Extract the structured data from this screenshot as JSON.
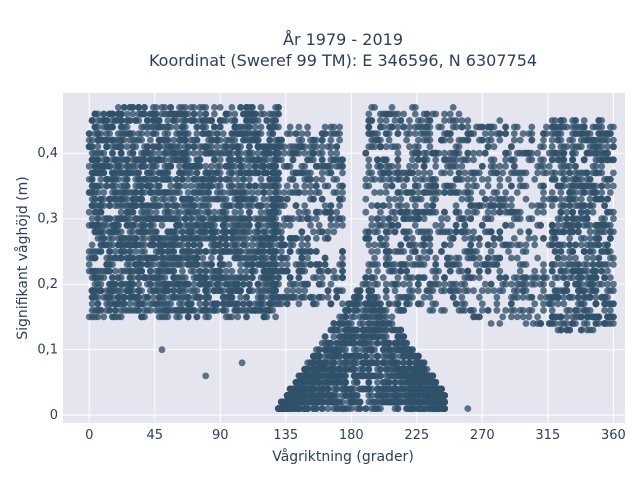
{
  "chart_data": {
    "type": "scatter",
    "title_line1": "År 1979 - 2019",
    "title_line2": "Koordinat (Sweref 99 TM): E 346596, N 6307754",
    "xlabel": "Vågriktning (grader)",
    "ylabel": "Signifikant våghöjd (m)",
    "xlim": [
      -18,
      368
    ],
    "ylim": [
      -0.012,
      0.492
    ],
    "xticks": [
      0,
      45,
      90,
      135,
      180,
      225,
      270,
      315,
      360
    ],
    "xtick_labels": [
      "0",
      "45",
      "90",
      "135",
      "180",
      "225",
      "270",
      "315",
      "360"
    ],
    "yticks": [
      0,
      0.1,
      0.2,
      0.3,
      0.4
    ],
    "ytick_labels": [
      "0",
      "0,1",
      "0,2",
      "0,3",
      "0,4"
    ],
    "grid": true,
    "marker_color": "#2f5169",
    "background_color": "#e5e5f0",
    "density_regions": [
      {
        "direction_range": [
          0,
          130
        ],
        "height_range": [
          0.15,
          0.47
        ],
        "approx_points": 2600
      },
      {
        "direction_range": [
          125,
          175
        ],
        "height_range": [
          0.17,
          0.44
        ],
        "approx_points": 450
      },
      {
        "direction_range": [
          190,
          262
        ],
        "height_range": [
          0.16,
          0.47
        ],
        "approx_points": 700
      },
      {
        "direction_range": [
          262,
          320
        ],
        "height_range": [
          0.14,
          0.45
        ],
        "approx_points": 400
      },
      {
        "direction_range": [
          318,
          360
        ],
        "height_range": [
          0.13,
          0.45
        ],
        "approx_points": 650
      },
      {
        "direction_range": [
          130,
          245
        ],
        "height_range": [
          0.0,
          0.2
        ],
        "shape": "triangle",
        "peak_direction": 190,
        "approx_points": 1700
      }
    ],
    "sparse_points": [
      {
        "x": 80,
        "y": 0.06
      },
      {
        "x": 105,
        "y": 0.08
      },
      {
        "x": 260,
        "y": 0.01
      },
      {
        "x": 305,
        "y": 0.14
      },
      {
        "x": 50,
        "y": 0.1
      }
    ]
  }
}
